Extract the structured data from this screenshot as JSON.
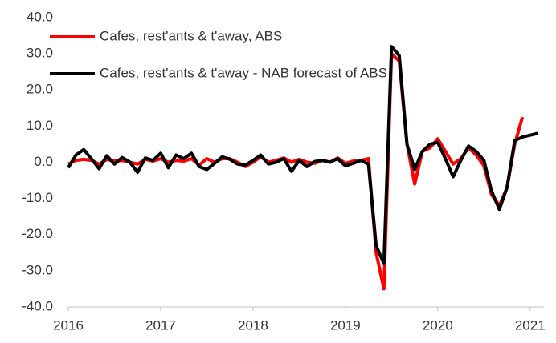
{
  "chart_data": {
    "type": "line",
    "x": [
      2016,
      2016.083,
      2016.167,
      2016.25,
      2016.333,
      2016.417,
      2016.5,
      2016.583,
      2016.667,
      2016.75,
      2016.833,
      2016.917,
      2017,
      2017.083,
      2017.167,
      2017.25,
      2017.333,
      2017.417,
      2017.5,
      2017.583,
      2017.667,
      2017.75,
      2017.833,
      2017.917,
      2018,
      2018.083,
      2018.167,
      2018.25,
      2018.333,
      2018.417,
      2018.5,
      2018.583,
      2018.667,
      2018.75,
      2018.833,
      2018.917,
      2019,
      2019.083,
      2019.167,
      2019.25,
      2019.333,
      2019.417,
      2019.5,
      2019.583,
      2019.667,
      2019.75,
      2019.833,
      2019.917,
      2020,
      2020.083,
      2020.167,
      2020.25,
      2020.333,
      2020.417,
      2020.5,
      2020.583,
      2020.667,
      2020.75,
      2020.833,
      2020.917,
      2021,
      2021.083
    ],
    "series": [
      {
        "name": "Cafes, rest'ants & t'away, ABS",
        "color": "#ff0000",
        "values": [
          -0.5,
          0.5,
          0.8,
          0.5,
          -0.5,
          0.8,
          0.3,
          0.5,
          0,
          -0.5,
          0.8,
          0.3,
          1,
          0,
          0.5,
          0.3,
          1,
          -0.8,
          1,
          0,
          1,
          1,
          0,
          -1.2,
          0,
          1.5,
          0,
          0.5,
          1.2,
          0,
          0.8,
          0,
          -0.3,
          0.5,
          0,
          1.2,
          -0.3,
          0.3,
          0.5,
          1,
          -25,
          -35,
          30,
          28,
          5,
          -6,
          3,
          4,
          6.5,
          3,
          -0.5,
          1,
          4,
          2,
          -1,
          -9,
          -12,
          -7,
          5,
          12.5,
          null,
          null
        ]
      },
      {
        "name": "Cafes, rest'ants & t'away - NAB forecast of ABS",
        "color": "#000000",
        "values": [
          -1.5,
          2,
          3.5,
          1,
          -1.8,
          1.8,
          -0.5,
          1.3,
          0,
          -2.8,
          1.2,
          0.5,
          2.5,
          -1.5,
          2,
          1,
          2.5,
          -1.2,
          -2,
          -0.3,
          1.5,
          0.8,
          -0.5,
          -0.8,
          0.5,
          2,
          -0.5,
          0,
          1,
          -2.5,
          0.5,
          -1.2,
          0.2,
          0.5,
          0,
          1,
          -1,
          -0.3,
          0.5,
          -0.5,
          -23,
          -28,
          32,
          29.5,
          5,
          -2,
          3,
          5,
          5.5,
          1,
          -4,
          0.5,
          4.5,
          3,
          0.5,
          -8,
          -13,
          -7,
          6,
          7,
          7.5,
          8
        ]
      }
    ],
    "xlim": [
      2016,
      2021.15
    ],
    "xticks": [
      2016,
      2017,
      2018,
      2019,
      2020,
      2021
    ],
    "ylim": [
      -40,
      40
    ],
    "yticks": [
      {
        "value": -40,
        "label": "-40.0"
      },
      {
        "value": -30,
        "label": "-30.0"
      },
      {
        "value": -20,
        "label": "-20.0"
      },
      {
        "value": -10,
        "label": "-10.0"
      },
      {
        "value": 0,
        "label": "0.0"
      },
      {
        "value": 10,
        "label": "10.0"
      },
      {
        "value": 20,
        "label": "20.0"
      },
      {
        "value": 30,
        "label": "30.0"
      },
      {
        "value": 40,
        "label": "40.0"
      }
    ],
    "legend": "top-left"
  }
}
